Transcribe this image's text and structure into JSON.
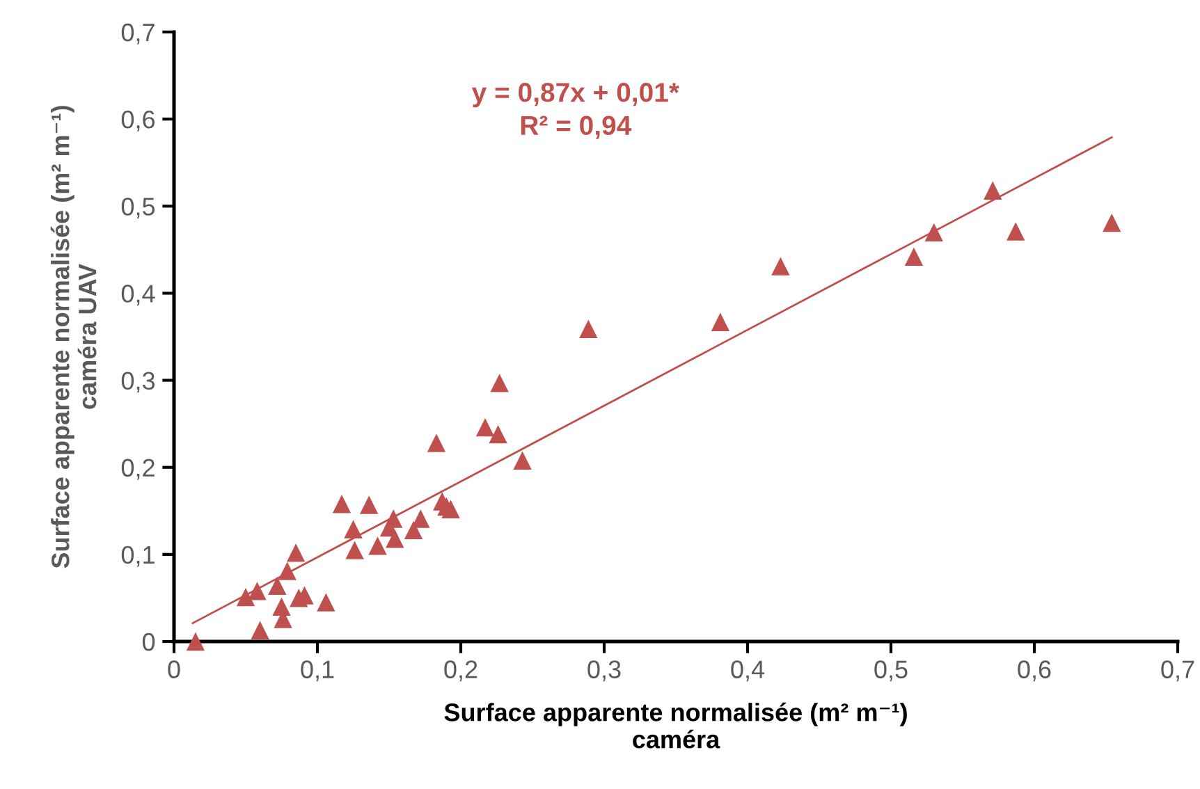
{
  "chart_data": {
    "type": "scatter",
    "xlabel": "Surface apparente normalisée (m² m⁻¹)\ncaméra",
    "ylabel": "Surface apparente normalisée (m² m⁻¹)\ncaméra UAV",
    "xlim": [
      0,
      0.7
    ],
    "ylim": [
      0,
      0.7
    ],
    "xticks": [
      0,
      {
        "value": 0.1,
        "label": "0,1"
      },
      {
        "value": 0.2,
        "label": "0,2"
      },
      {
        "value": 0.3,
        "label": "0,3"
      },
      {
        "value": 0.4,
        "label": "0,4"
      },
      {
        "value": 0.5,
        "label": "0,5"
      },
      {
        "value": 0.6,
        "label": "0,6"
      },
      {
        "value": 0.7,
        "label": "0,7"
      }
    ],
    "yticks": [
      0,
      {
        "value": 0.1,
        "label": "0,1"
      },
      {
        "value": 0.2,
        "label": "0,2"
      },
      {
        "value": 0.3,
        "label": "0,3"
      },
      {
        "value": 0.4,
        "label": "0,4"
      },
      {
        "value": 0.5,
        "label": "0,5"
      },
      {
        "value": 0.6,
        "label": "0,6"
      },
      {
        "value": 0.7,
        "label": "0,7"
      }
    ],
    "grid": false,
    "legend": false,
    "marker": "triangle",
    "annotations": [
      "y = 0,87x + 0,01*\nR² = 0,94"
    ],
    "series": [
      {
        "color": "#c0504d",
        "x": [
          0.015,
          0.05,
          0.058,
          0.06,
          0.072,
          0.075,
          0.076,
          0.079,
          0.085,
          0.087,
          0.091,
          0.106,
          0.117,
          0.125,
          0.126,
          0.136,
          0.142,
          0.15,
          0.153,
          0.154,
          0.167,
          0.172,
          0.183,
          0.187,
          0.19,
          0.193,
          0.217,
          0.226,
          0.227,
          0.243,
          0.289,
          0.381,
          0.423,
          0.516,
          0.53,
          0.571,
          0.587,
          0.654
        ],
        "values": [
          0.0,
          0.051,
          0.058,
          0.013,
          0.064,
          0.04,
          0.026,
          0.081,
          0.102,
          0.05,
          0.053,
          0.045,
          0.158,
          0.129,
          0.105,
          0.157,
          0.11,
          0.131,
          0.141,
          0.118,
          0.128,
          0.141,
          0.228,
          0.161,
          0.155,
          0.152,
          0.246,
          0.238,
          0.297,
          0.208,
          0.359,
          0.367,
          0.431,
          0.442,
          0.47,
          0.518,
          0.471,
          0.481
        ]
      },
      {
        "type": "line",
        "color": "#c0504d",
        "marker": "none",
        "x": [
          0.013,
          0.654
        ],
        "values": [
          0.021,
          0.579
        ]
      }
    ]
  }
}
